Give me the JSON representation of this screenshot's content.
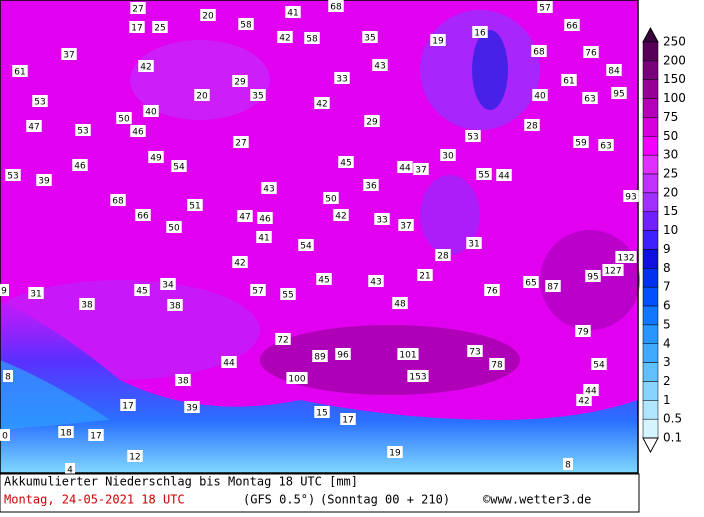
{
  "map": {
    "labels": [
      "27",
      "41",
      "68",
      "57",
      "20",
      "17",
      "25",
      "58",
      "66",
      "42",
      "58",
      "35",
      "19",
      "16",
      "37",
      "42",
      "68",
      "76",
      "61",
      "33",
      "43",
      "84",
      "29",
      "61",
      "20",
      "35",
      "40",
      "63",
      "95",
      "53",
      "42",
      "50",
      "40",
      "29",
      "28",
      "47",
      "53",
      "46",
      "53",
      "27",
      "59",
      "63",
      "49",
      "30",
      "46",
      "54",
      "45",
      "44",
      "37",
      "55",
      "44",
      "53",
      "39",
      "36",
      "43",
      "93",
      "68",
      "50",
      "51",
      "66",
      "47",
      "46",
      "42",
      "33",
      "37",
      "50",
      "41",
      "54",
      "31",
      "28",
      "132",
      "42",
      "127",
      "95",
      "21",
      "45",
      "43",
      "34",
      "65",
      "87",
      "9",
      "31",
      "45",
      "57",
      "55",
      "76",
      "38",
      "38",
      "48",
      "79",
      "72",
      "101",
      "73",
      "89",
      "96",
      "44",
      "78",
      "54",
      "8",
      "38",
      "100",
      "153",
      "44",
      "42",
      "17",
      "39",
      "15",
      "17",
      "0",
      "18",
      "17",
      "19",
      "12",
      "8",
      "4"
    ]
  },
  "legend": {
    "ticks": [
      "250",
      "200",
      "150",
      "100",
      "75",
      "50",
      "30",
      "25",
      "20",
      "15",
      "10",
      "9",
      "8",
      "7",
      "6",
      "5",
      "4",
      "3",
      "2",
      "1",
      "0.5",
      "0.1"
    ]
  },
  "footer": {
    "title": "Akkumulierter Niederschlag bis Montag 18 UTC [mm]",
    "date": "Montag, 24-05-2021  18 UTC",
    "model": "(GFS 0.5°)",
    "run": "(Sonntag 00 + 210)",
    "copyright": "©www.wetter3.de"
  }
}
